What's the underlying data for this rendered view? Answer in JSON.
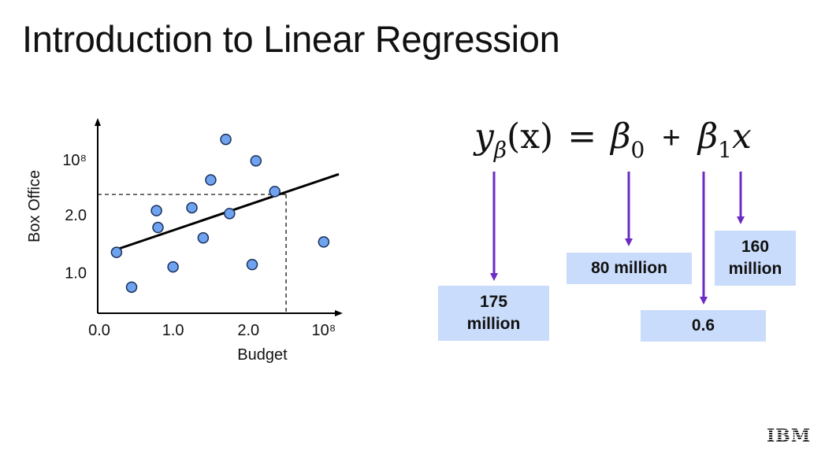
{
  "slide": {
    "title": "Introduction to Linear Regression",
    "logo_text": "IBM"
  },
  "chart_data": {
    "type": "scatter",
    "xlabel": "Budget",
    "ylabel": "Box Office",
    "x_ticks": [
      "0.0",
      "1.0",
      "2.0",
      "10⁸"
    ],
    "y_ticks": [
      "1.0",
      "2.0",
      "10⁸"
    ],
    "xlim": [
      0,
      3.2
    ],
    "ylim": [
      0.3,
      3.6
    ],
    "points": [
      {
        "x": 0.25,
        "y": 1.35
      },
      {
        "x": 0.45,
        "y": 0.75
      },
      {
        "x": 0.78,
        "y": 2.07
      },
      {
        "x": 0.8,
        "y": 1.78
      },
      {
        "x": 1.0,
        "y": 1.1
      },
      {
        "x": 1.25,
        "y": 2.12
      },
      {
        "x": 1.4,
        "y": 1.6
      },
      {
        "x": 1.5,
        "y": 2.6
      },
      {
        "x": 1.7,
        "y": 3.3
      },
      {
        "x": 1.75,
        "y": 2.02
      },
      {
        "x": 2.05,
        "y": 1.14
      },
      {
        "x": 2.1,
        "y": 2.93
      },
      {
        "x": 2.35,
        "y": 2.4
      },
      {
        "x": 3.0,
        "y": 1.53
      }
    ],
    "regression_line": {
      "x": [
        0.25,
        3.2
      ],
      "y": [
        1.4,
        2.7
      ]
    },
    "reference_point": {
      "x": 2.5,
      "y": 2.35
    },
    "line_color": "#000000",
    "marker_color": "#6fa3ef"
  },
  "equation": {
    "y": "y",
    "y_sub": "β",
    "arg": "(x)",
    "eq": "=",
    "b0": "β",
    "b0_sub": "0",
    "plus": "+",
    "b1": "β",
    "b1_sub": "1",
    "x": "x"
  },
  "annotations": {
    "y_value": "175 million",
    "beta0_value": "80 million",
    "beta1_value": "0.6",
    "x_value": "160 million",
    "arrow_color": "#6c2bc4",
    "box_color": "#c9dcfb"
  }
}
